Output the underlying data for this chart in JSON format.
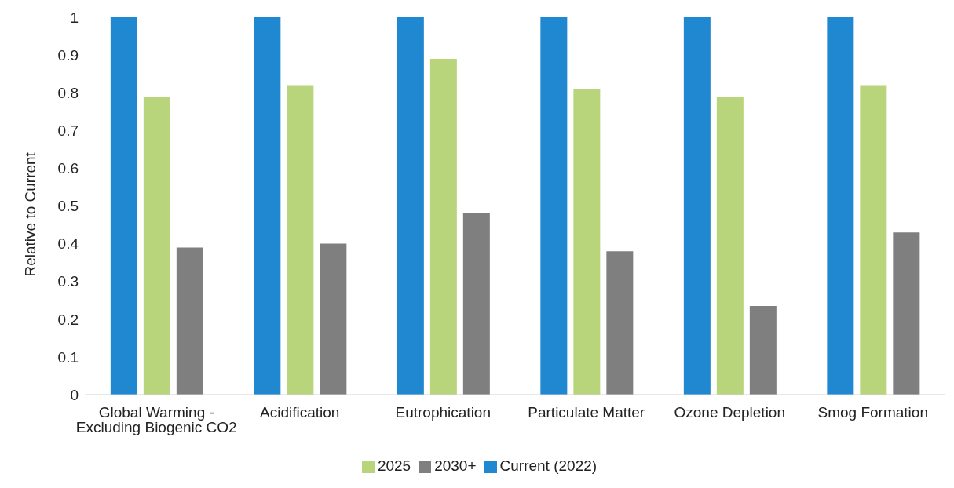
{
  "chart_data": {
    "type": "bar",
    "ylabel": "Relative to Current",
    "categories": [
      "Global Warming - Excluding Biogenic CO2",
      "Acidification",
      "Eutrophication",
      "Particulate Matter",
      "Ozone Depletion",
      "Smog Formation"
    ],
    "series": [
      {
        "name": "Current (2022)",
        "color": "#1f88d0",
        "values": [
          1,
          1,
          1,
          1,
          1,
          1
        ]
      },
      {
        "name": "2025",
        "color": "#b8d57b",
        "values": [
          0.79,
          0.82,
          0.89,
          0.81,
          0.79,
          0.82
        ]
      },
      {
        "name": "2030+",
        "color": "#7f7f7f",
        "values": [
          0.39,
          0.4,
          0.48,
          0.38,
          0.235,
          0.43
        ]
      }
    ],
    "ylim": [
      0,
      1
    ],
    "yticks": [
      0,
      0.1,
      0.2,
      0.3,
      0.4,
      0.5,
      0.6,
      0.7,
      0.8,
      0.9,
      1
    ],
    "grid": false,
    "legend": "bottom"
  }
}
